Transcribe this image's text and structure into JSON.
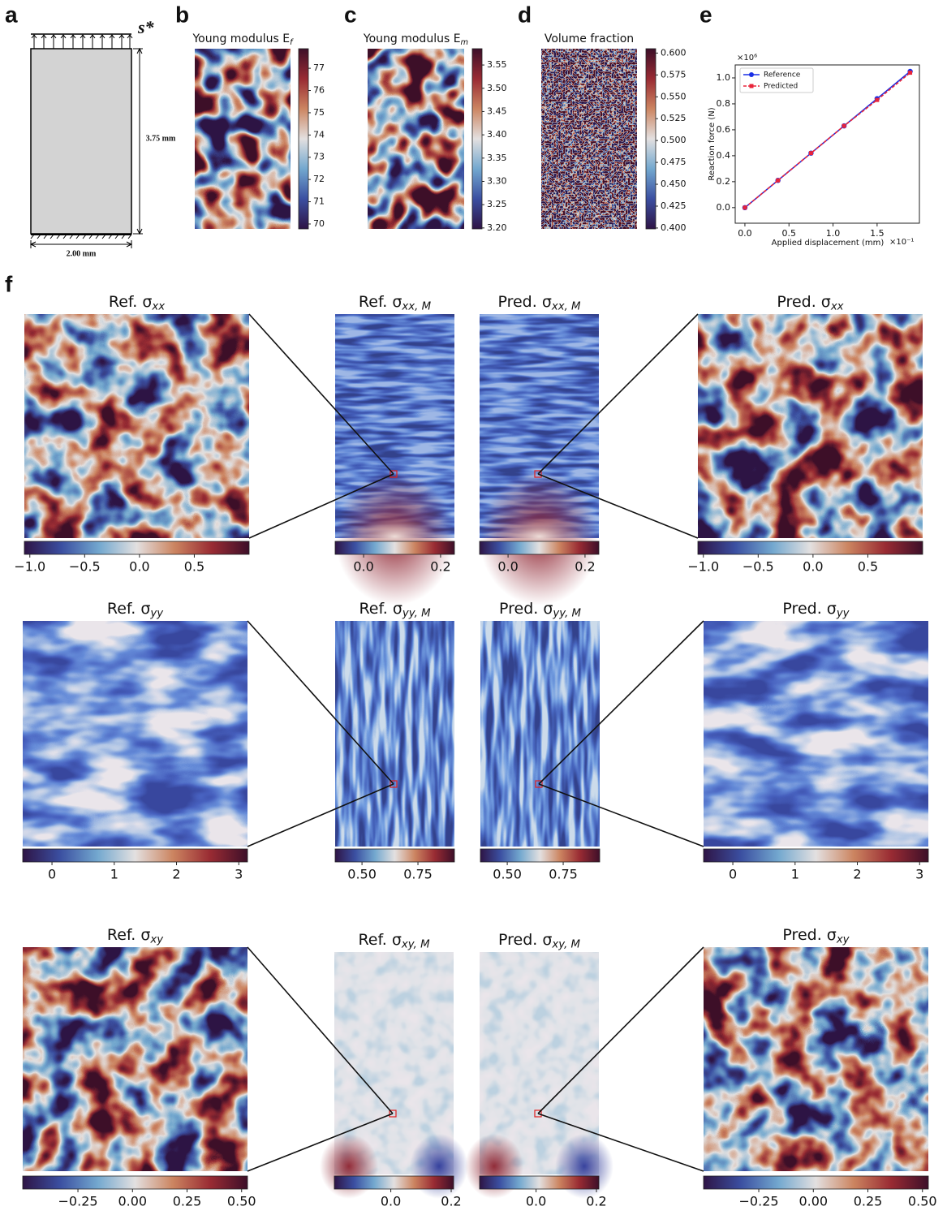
{
  "panel_labels": [
    "a",
    "b",
    "c",
    "d",
    "e",
    "f"
  ],
  "schematic": {
    "load_label": "s*",
    "height_label": "3.75 mm",
    "width_label": "2.00 mm"
  },
  "chart_data": [
    {
      "type": "heatmap",
      "title": "Young modulus E",
      "title_sub": "f",
      "clim": [
        69.78,
        77.88
      ],
      "cticks": [
        70,
        71,
        72,
        73,
        74,
        75,
        76,
        77
      ]
    },
    {
      "type": "heatmap",
      "title": "Young modulus E",
      "title_sub": "m",
      "clim": [
        3.198,
        3.585
      ],
      "cticks": [
        {
          "value": 3.2,
          "label": "3.20"
        },
        3.25,
        {
          "value": 3.3,
          "label": "3.30"
        },
        3.35,
        {
          "value": 3.4,
          "label": "3.40"
        },
        3.45,
        {
          "value": 3.5,
          "label": "3.50"
        },
        3.55
      ]
    },
    {
      "type": "heatmap",
      "title": "Volume fraction",
      "clim": [
        0.399,
        0.605
      ],
      "cticks": [
        {
          "value": 0.4,
          "label": "0.400"
        },
        0.425,
        {
          "value": 0.45,
          "label": "0.450"
        },
        0.475,
        {
          "value": 0.5,
          "label": "0.500"
        },
        0.525,
        {
          "value": 0.55,
          "label": "0.550"
        },
        0.575,
        {
          "value": 0.6,
          "label": "0.600"
        }
      ]
    },
    {
      "type": "line",
      "xlabel": "Applied displacement (mm)",
      "x_multiplier": "×10⁻¹",
      "ylabel": "Reaction force (N)",
      "y_multiplier": "×10⁶",
      "x": [
        0,
        0.375,
        0.75,
        1.125,
        1.5,
        1.875
      ],
      "series": [
        {
          "name": "Reference",
          "color": "#1a2fe6",
          "linestyle": "solid",
          "marker": "circle",
          "values": [
            0,
            0.21,
            0.42,
            0.63,
            0.84,
            1.05
          ]
        },
        {
          "name": "Predicted",
          "color": "#e8243a",
          "linestyle": "dashed",
          "marker": "square",
          "values": [
            0,
            0.21,
            0.42,
            0.63,
            0.83,
            1.04
          ]
        }
      ],
      "xlim": [
        -0.11,
        1.98
      ],
      "ylim": [
        -0.12,
        1.1
      ],
      "xticks": [
        {
          "value": 0,
          "label": "0.0"
        },
        {
          "value": 0.5,
          "label": "0.5"
        },
        {
          "value": 1,
          "label": "1.0"
        },
        {
          "value": 1.5,
          "label": "1.5"
        }
      ],
      "yticks": [
        {
          "value": 0,
          "label": "0.0"
        },
        {
          "value": 0.2,
          "label": "0.2"
        },
        {
          "value": 0.4,
          "label": "0.4"
        },
        {
          "value": 0.6,
          "label": "0.6"
        },
        {
          "value": 0.8,
          "label": "0.8"
        },
        {
          "value": 1,
          "label": "1.0"
        }
      ],
      "legend": "upper left",
      "grid": false
    },
    {
      "type": "heatmap",
      "title": "Ref. σ",
      "title_sub": "xx",
      "clim": [
        -1.05,
        1.0
      ],
      "cticks": [
        {
          "value": -1,
          "label": "−1.0"
        },
        {
          "value": -0.5,
          "label": "−0.5"
        },
        {
          "value": 0,
          "label": "0.0"
        },
        {
          "value": 0.5,
          "label": "0.5"
        }
      ]
    },
    {
      "type": "heatmap",
      "title": "Ref. σ",
      "title_sub": "xx, M",
      "clim": [
        -0.074,
        0.236
      ],
      "cticks": [
        {
          "value": 0,
          "label": "0.0"
        },
        0.2
      ]
    },
    {
      "type": "heatmap",
      "title": "Pred. σ",
      "title_sub": "xx, M",
      "clim": [
        -0.074,
        0.236
      ],
      "cticks": [
        {
          "value": 0,
          "label": "0.0"
        },
        0.2
      ]
    },
    {
      "type": "heatmap",
      "title": "Pred. σ",
      "title_sub": "xx",
      "clim": [
        -1.05,
        1.0
      ],
      "cticks": [
        {
          "value": -1,
          "label": "−1.0"
        },
        {
          "value": -0.5,
          "label": "−0.5"
        },
        {
          "value": 0,
          "label": "0.0"
        },
        {
          "value": 0.5,
          "label": "0.5"
        }
      ]
    },
    {
      "type": "heatmap",
      "title": "Ref. σ",
      "title_sub": "yy",
      "clim": [
        -0.47,
        3.14
      ],
      "cticks": [
        0,
        1,
        2,
        3
      ]
    },
    {
      "type": "heatmap",
      "title": "Ref. σ",
      "title_sub": "yy, M",
      "clim": [
        0.38,
        0.913
      ],
      "cticks": [
        {
          "value": 0.5,
          "label": "0.50"
        },
        0.75
      ]
    },
    {
      "type": "heatmap",
      "title": "Pred. σ",
      "title_sub": "yy, M",
      "clim": [
        0.38,
        0.913
      ],
      "cticks": [
        {
          "value": 0.5,
          "label": "0.50"
        },
        0.75
      ]
    },
    {
      "type": "heatmap",
      "title": "Pred. σ",
      "title_sub": "yy",
      "clim": [
        -0.47,
        3.14
      ],
      "cticks": [
        0,
        1,
        2,
        3
      ]
    },
    {
      "type": "heatmap",
      "title": "Ref. σ",
      "title_sub": "xy",
      "clim": [
        -0.503,
        0.527
      ],
      "cticks": [
        {
          "value": -0.25,
          "label": "−0.25"
        },
        {
          "value": 0,
          "label": "0.00"
        },
        0.25,
        {
          "value": 0.5,
          "label": "0.50"
        }
      ]
    },
    {
      "type": "heatmap",
      "title": "Ref. σ",
      "title_sub": "xy, M",
      "clim": [
        -0.187,
        0.208
      ],
      "cticks": [
        {
          "value": 0,
          "label": "0.0"
        },
        0.2
      ]
    },
    {
      "type": "heatmap",
      "title": "Pred. σ",
      "title_sub": "xy, M",
      "clim": [
        -0.187,
        0.208
      ],
      "cticks": [
        {
          "value": 0,
          "label": "0.0"
        },
        0.2
      ]
    },
    {
      "type": "heatmap",
      "title": "Pred. σ",
      "title_sub": "xy",
      "clim": [
        -0.503,
        0.527
      ],
      "cticks": [
        {
          "value": -0.25,
          "label": "−0.25"
        },
        {
          "value": 0,
          "label": "0.00"
        },
        0.25,
        {
          "value": 0.5,
          "label": "0.50"
        }
      ]
    }
  ]
}
